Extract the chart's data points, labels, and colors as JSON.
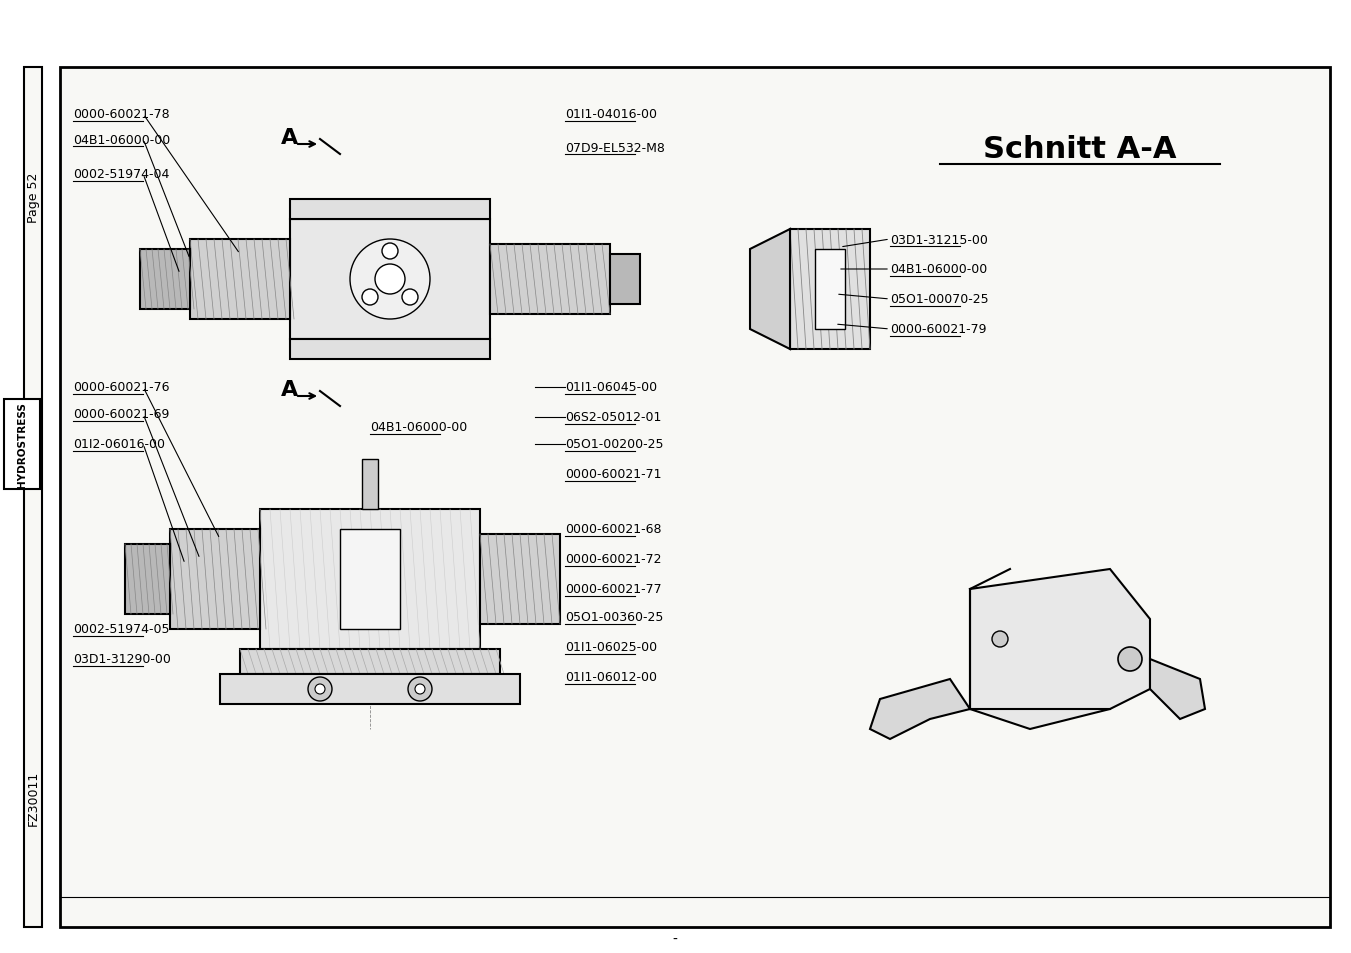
{
  "page_bg": "#f5f5f0",
  "border_color": "#000000",
  "title": "Schnitt A-A",
  "page_label": "Page 52",
  "fz_label": "FZ30011",
  "hydrostress_label": "HYDROSTRESS",
  "left_labels_top": [
    "0000-60021-78",
    "04B1-06000-00",
    "0002-51974-04"
  ],
  "left_labels_bottom": [
    "0000-60021-76",
    "0000-60021-69",
    "01I2-06016-00"
  ],
  "left_labels_bottom2": [
    "0002-51974-05",
    "03D1-31290-00"
  ],
  "right_labels_top": [
    "01I1-04016-00",
    "07D9-EL532-M8"
  ],
  "right_labels_mid": [
    "01I1-06045-00",
    "06S2-05012-01",
    "05O1-00200-25",
    "0000-60021-71"
  ],
  "right_labels_mid2": [
    "04B1-06000-00"
  ],
  "right_labels_bottom": [
    "0000-60021-68",
    "0000-60021-72",
    "0000-60021-77",
    "05O1-00360-25",
    "01I1-06025-00",
    "01I1-06012-00"
  ],
  "schnitt_labels": [
    "03D1-31215-00",
    "04B1-06000-00",
    "05O1-00070-25",
    "0000-60021-79"
  ]
}
